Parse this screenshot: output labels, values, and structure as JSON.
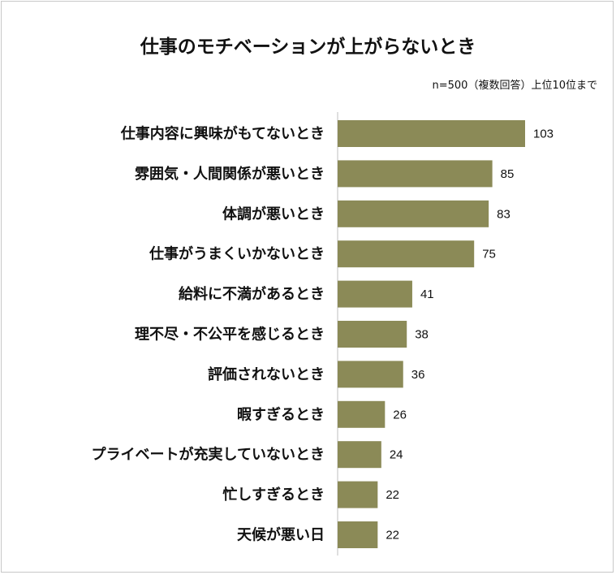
{
  "chart_data": {
    "type": "bar",
    "orientation": "horizontal",
    "title": "仕事のモチベーションが上がらないとき",
    "subtitle": "n=500（複数回答）上位10位まで",
    "categories": [
      "仕事内容に興味がもてないとき",
      "雰囲気・人間関係が悪いとき",
      "体調が悪いとき",
      "仕事がうまくいかないとき",
      "給料に不満があるとき",
      "理不尽・不公平を感じるとき",
      "評価されないとき",
      "暇すぎるとき",
      "プライベートが充実していないとき",
      "忙しすぎるとき",
      "天候が悪い日"
    ],
    "values": [
      103,
      85,
      83,
      75,
      41,
      38,
      36,
      26,
      24,
      22,
      22
    ],
    "bar_color": "#8b8a57",
    "axis_color": "#bfbfbf",
    "xlim": [
      0,
      103
    ],
    "xlabel": "",
    "ylabel": "",
    "grid": false,
    "legend": "none"
  }
}
